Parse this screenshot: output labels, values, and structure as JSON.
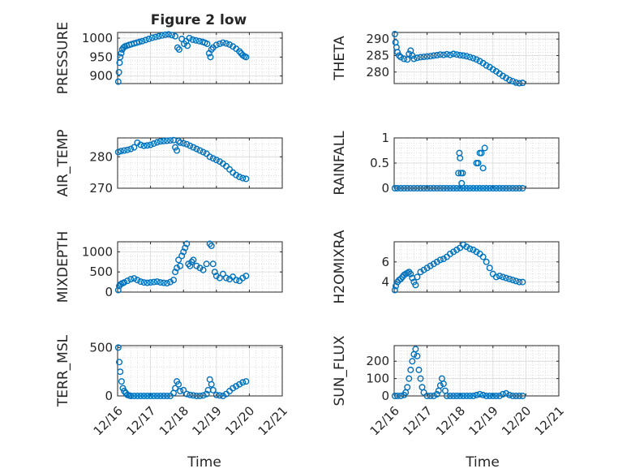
{
  "figure": {
    "title": "Figure 2 low",
    "xlabel": "Time",
    "x_ticks": [
      "12/16",
      "12/17",
      "12/18",
      "12/19",
      "12/20",
      "12/21"
    ],
    "marker_color": "#0072BD"
  },
  "chart_data": [
    {
      "type": "scatter",
      "title": "Figure 2 low",
      "ylabel": "PRESSURE",
      "xlim": [
        0,
        5
      ],
      "ylim": [
        880,
        1015
      ],
      "yticks": [
        900,
        950,
        1000
      ],
      "grid": true,
      "minor_grid": true,
      "x": [
        0.02,
        0.04,
        0.06,
        0.08,
        0.11,
        0.14,
        0.18,
        0.22,
        0.28,
        0.35,
        0.42,
        0.5,
        0.58,
        0.66,
        0.75,
        0.85,
        0.95,
        1.05,
        1.15,
        1.25,
        1.35,
        1.45,
        1.55,
        1.65,
        1.75,
        1.82,
        1.87,
        1.95,
        2.02,
        2.08,
        2.12,
        2.18,
        2.28,
        2.38,
        2.48,
        2.58,
        2.65,
        2.72,
        2.78,
        2.82,
        2.85,
        2.9,
        3.0,
        3.1,
        3.2,
        3.3,
        3.4,
        3.5,
        3.6,
        3.7,
        3.75,
        3.8,
        3.85,
        3.9
      ],
      "y": [
        885,
        910,
        935,
        950,
        960,
        970,
        975,
        978,
        980,
        982,
        984,
        986,
        988,
        990,
        992,
        995,
        998,
        1001,
        1003,
        1005,
        1007,
        1009,
        1010,
        1008,
        1005,
        975,
        970,
        998,
        985,
        992,
        980,
        1000,
        996,
        994,
        992,
        990,
        988,
        985,
        960,
        950,
        970,
        975,
        982,
        985,
        988,
        986,
        983,
        978,
        972,
        965,
        960,
        955,
        952,
        950
      ]
    },
    {
      "type": "scatter",
      "ylabel": "THETA",
      "xlim": [
        0,
        5
      ],
      "ylim": [
        276.5,
        292
      ],
      "yticks": [
        280,
        285,
        290
      ],
      "grid": true,
      "minor_grid": true,
      "x": [
        0.02,
        0.04,
        0.07,
        0.1,
        0.15,
        0.2,
        0.3,
        0.4,
        0.45,
        0.5,
        0.55,
        0.6,
        0.7,
        0.8,
        0.9,
        1.0,
        1.1,
        1.2,
        1.3,
        1.4,
        1.5,
        1.6,
        1.7,
        1.8,
        1.9,
        2.0,
        2.1,
        2.2,
        2.3,
        2.4,
        2.5,
        2.6,
        2.7,
        2.8,
        2.9,
        3.0,
        3.1,
        3.2,
        3.3,
        3.4,
        3.5,
        3.6,
        3.7,
        3.8,
        3.9
      ],
      "y": [
        291.5,
        289,
        287.5,
        286,
        285,
        284.5,
        284,
        283.8,
        285.5,
        286.5,
        285,
        284,
        284.3,
        284.5,
        284.6,
        284.7,
        284.8,
        285,
        285.1,
        285.3,
        285.2,
        285.4,
        285.2,
        285.5,
        285.3,
        285.1,
        285,
        284.8,
        284.5,
        284.2,
        283.8,
        283.3,
        282.7,
        282,
        281.5,
        280.8,
        280.2,
        279.5,
        278.8,
        278.2,
        277.6,
        277.2,
        276.8,
        276.6,
        276.7
      ]
    },
    {
      "type": "scatter",
      "ylabel": "AIR_TEMP",
      "xlim": [
        0,
        5
      ],
      "ylim": [
        270,
        286
      ],
      "yticks": [
        270,
        280
      ],
      "grid": true,
      "minor_grid": true,
      "x": [
        0.02,
        0.1,
        0.2,
        0.3,
        0.4,
        0.5,
        0.6,
        0.7,
        0.8,
        0.9,
        1.0,
        1.1,
        1.2,
        1.3,
        1.4,
        1.5,
        1.6,
        1.7,
        1.75,
        1.8,
        1.85,
        1.9,
        2.0,
        2.1,
        2.2,
        2.3,
        2.4,
        2.5,
        2.6,
        2.7,
        2.8,
        2.9,
        3.0,
        3.1,
        3.2,
        3.3,
        3.4,
        3.5,
        3.6,
        3.7,
        3.8,
        3.9
      ],
      "y": [
        281.5,
        281.8,
        282,
        282.2,
        282.5,
        283,
        284.5,
        283.8,
        283.5,
        283.6,
        283.8,
        284.2,
        284.6,
        284.9,
        285,
        285.1,
        285.2,
        285.3,
        283,
        282,
        285,
        284.5,
        284.3,
        284,
        283.5,
        283,
        282.5,
        282,
        281.5,
        281,
        280,
        279.5,
        279,
        278.5,
        277.8,
        277,
        276,
        275,
        274.2,
        273.6,
        273.2,
        273
      ]
    },
    {
      "type": "scatter",
      "ylabel": "RAINFALL",
      "xlim": [
        0,
        5
      ],
      "ylim": [
        0,
        1
      ],
      "yticks": [
        0,
        0.5,
        1
      ],
      "grid": true,
      "minor_grid": true,
      "x": [
        0.02,
        0.1,
        0.2,
        0.3,
        0.4,
        0.5,
        0.6,
        0.7,
        0.8,
        0.9,
        1.0,
        1.1,
        1.2,
        1.3,
        1.4,
        1.5,
        1.6,
        1.7,
        1.8,
        1.9,
        2.0,
        2.1,
        2.2,
        2.3,
        2.4,
        2.5,
        2.6,
        2.7,
        2.8,
        2.9,
        3.0,
        3.1,
        3.2,
        3.3,
        3.4,
        3.5,
        3.6,
        3.7,
        3.8,
        3.9,
        1.95,
        1.98,
        2.0,
        2.03,
        2.05,
        2.08,
        2.5,
        2.55,
        2.6,
        2.65,
        2.7,
        2.75
      ],
      "y": [
        0,
        0,
        0,
        0,
        0,
        0,
        0,
        0,
        0,
        0,
        0,
        0,
        0,
        0,
        0,
        0,
        0,
        0,
        0,
        0,
        0,
        0,
        0,
        0,
        0,
        0,
        0,
        0,
        0,
        0,
        0,
        0,
        0,
        0,
        0,
        0,
        0,
        0,
        0,
        0,
        0.3,
        0.7,
        0.6,
        0.3,
        0.1,
        0.3,
        0.5,
        0.5,
        0.7,
        0.7,
        0.4,
        0.8
      ]
    },
    {
      "type": "scatter",
      "ylabel": "MIXDEPTH",
      "xlim": [
        0,
        5
      ],
      "ylim": [
        0,
        1250
      ],
      "yticks": [
        0,
        500,
        1000
      ],
      "grid": true,
      "minor_grid": true,
      "x": [
        0.02,
        0.05,
        0.1,
        0.15,
        0.2,
        0.3,
        0.4,
        0.5,
        0.6,
        0.7,
        0.8,
        0.9,
        1.0,
        1.1,
        1.2,
        1.3,
        1.4,
        1.5,
        1.6,
        1.7,
        1.75,
        1.8,
        1.85,
        1.9,
        1.95,
        2.0,
        2.05,
        2.1,
        2.15,
        2.2,
        2.25,
        2.3,
        2.4,
        2.5,
        2.6,
        2.7,
        2.8,
        2.85,
        2.9,
        2.95,
        3.0,
        3.1,
        3.2,
        3.3,
        3.4,
        3.5,
        3.6,
        3.7,
        3.8,
        3.9
      ],
      "y": [
        50,
        150,
        200,
        220,
        240,
        280,
        320,
        340,
        300,
        260,
        240,
        230,
        240,
        250,
        260,
        240,
        230,
        220,
        250,
        300,
        500,
        600,
        800,
        650,
        900,
        1000,
        1100,
        1200,
        700,
        650,
        750,
        800,
        650,
        600,
        550,
        700,
        1200,
        1150,
        700,
        500,
        400,
        350,
        450,
        350,
        320,
        380,
        300,
        280,
        350,
        400
      ]
    },
    {
      "type": "scatter",
      "ylabel": "H2OMIXRA",
      "xlim": [
        0,
        5
      ],
      "ylim": [
        3,
        8
      ],
      "yticks": [
        4,
        6
      ],
      "grid": true,
      "minor_grid": true,
      "x": [
        0.02,
        0.05,
        0.1,
        0.15,
        0.2,
        0.25,
        0.3,
        0.35,
        0.4,
        0.45,
        0.5,
        0.55,
        0.6,
        0.65,
        0.7,
        0.8,
        0.9,
        1.0,
        1.1,
        1.2,
        1.3,
        1.4,
        1.5,
        1.6,
        1.7,
        1.8,
        1.9,
        2.0,
        2.1,
        2.2,
        2.3,
        2.4,
        2.5,
        2.6,
        2.7,
        2.8,
        2.9,
        3.0,
        3.1,
        3.2,
        3.3,
        3.4,
        3.5,
        3.6,
        3.7,
        3.8,
        3.9
      ],
      "y": [
        3.2,
        3.6,
        4.0,
        4.2,
        4.3,
        4.5,
        4.7,
        4.8,
        4.9,
        5.0,
        4.8,
        4.4,
        4.0,
        3.7,
        4.5,
        5.0,
        5.2,
        5.4,
        5.6,
        5.8,
        6.0,
        6.2,
        6.3,
        6.5,
        6.8,
        7.0,
        7.2,
        7.4,
        7.7,
        7.5,
        7.3,
        7.2,
        7.0,
        6.8,
        6.5,
        6.0,
        5.4,
        4.8,
        4.5,
        4.6,
        4.5,
        4.4,
        4.3,
        4.2,
        4.1,
        4.0,
        4.0
      ]
    },
    {
      "type": "scatter",
      "ylabel": "TERR_MSL",
      "xlim": [
        0,
        5
      ],
      "ylim": [
        0,
        520
      ],
      "yticks": [
        0,
        500
      ],
      "grid": true,
      "minor_grid": true,
      "x": [
        0.02,
        0.05,
        0.08,
        0.12,
        0.16,
        0.2,
        0.25,
        0.3,
        0.35,
        0.4,
        0.5,
        0.6,
        0.7,
        0.8,
        0.9,
        1.0,
        1.1,
        1.2,
        1.3,
        1.4,
        1.5,
        1.6,
        1.7,
        1.75,
        1.8,
        1.85,
        1.9,
        2.0,
        2.1,
        2.2,
        2.3,
        2.4,
        2.5,
        2.6,
        2.7,
        2.75,
        2.8,
        2.85,
        2.9,
        3.0,
        3.1,
        3.2,
        3.3,
        3.4,
        3.5,
        3.6,
        3.7,
        3.8,
        3.9
      ],
      "y": [
        500,
        350,
        250,
        150,
        80,
        50,
        30,
        10,
        5,
        0,
        0,
        0,
        0,
        0,
        0,
        0,
        0,
        0,
        0,
        0,
        0,
        0,
        30,
        80,
        150,
        120,
        50,
        60,
        20,
        10,
        5,
        0,
        0,
        5,
        20,
        60,
        170,
        120,
        60,
        10,
        5,
        0,
        20,
        50,
        80,
        100,
        120,
        140,
        150
      ]
    },
    {
      "type": "scatter",
      "ylabel": "SUN_FLUX",
      "xlim": [
        0,
        5
      ],
      "ylim": [
        0,
        290
      ],
      "yticks": [
        0,
        100,
        200
      ],
      "grid": true,
      "minor_grid": true,
      "x": [
        0.02,
        0.1,
        0.2,
        0.3,
        0.35,
        0.4,
        0.45,
        0.5,
        0.55,
        0.6,
        0.65,
        0.7,
        0.75,
        0.8,
        0.85,
        0.9,
        1.0,
        1.1,
        1.2,
        1.3,
        1.35,
        1.4,
        1.45,
        1.5,
        1.55,
        1.6,
        1.7,
        1.8,
        1.9,
        2.0,
        2.1,
        2.2,
        2.3,
        2.4,
        2.5,
        2.6,
        2.7,
        2.8,
        2.9,
        3.0,
        3.1,
        3.2,
        3.3,
        3.4,
        3.5,
        3.6,
        3.7,
        3.8,
        3.9
      ],
      "y": [
        0,
        0,
        0,
        5,
        20,
        50,
        100,
        150,
        200,
        240,
        270,
        230,
        150,
        100,
        50,
        20,
        0,
        0,
        0,
        10,
        30,
        60,
        100,
        70,
        30,
        0,
        0,
        0,
        0,
        0,
        0,
        0,
        0,
        0,
        5,
        10,
        5,
        0,
        0,
        0,
        0,
        0,
        10,
        15,
        5,
        0,
        0,
        0,
        0
      ]
    }
  ]
}
